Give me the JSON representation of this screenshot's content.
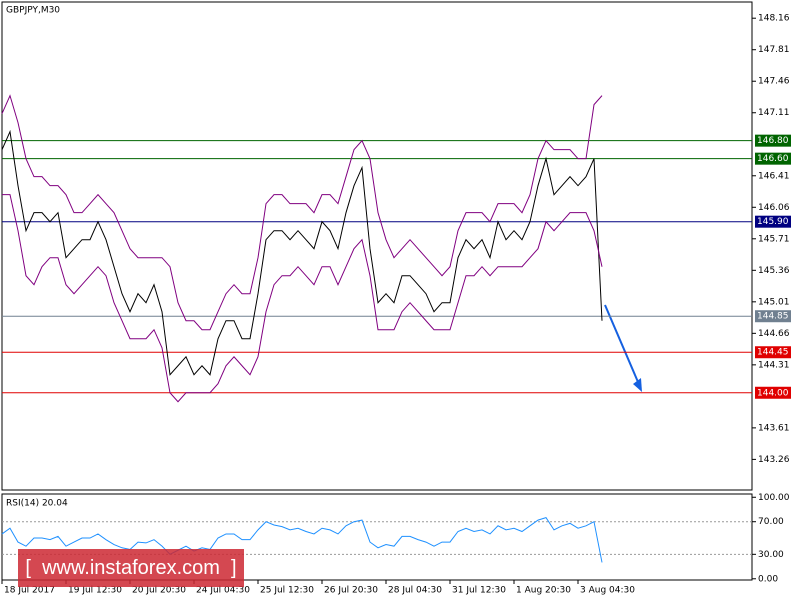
{
  "chart_data": [
    {
      "type": "line",
      "title": "GBPJPY,M30",
      "xlim": [
        0,
        93.75
      ],
      "ylim": [
        142.92,
        148.34
      ],
      "yticks": [
        148.16,
        147.81,
        147.46,
        147.11,
        146.41,
        146.06,
        145.71,
        145.36,
        145.01,
        144.66,
        144.31,
        143.61,
        143.26
      ],
      "levels": [
        {
          "value": 146.8,
          "label": "146.80",
          "color": "#006400"
        },
        {
          "value": 146.6,
          "label": "146.60",
          "color": "#006400"
        },
        {
          "value": 145.9,
          "label": "145.90",
          "color": "#000080"
        },
        {
          "value": 144.85,
          "label": "144.85",
          "color": "#708090"
        },
        {
          "value": 144.45,
          "label": "144.45",
          "color": "#e00000"
        },
        {
          "value": 144.0,
          "label": "144.00",
          "color": "#e00000"
        }
      ],
      "series": [
        {
          "color": "#000000",
          "values": [
            146.7,
            146.9,
            146.3,
            145.8,
            146.0,
            146.0,
            145.9,
            146.0,
            145.5,
            145.6,
            145.7,
            145.7,
            145.9,
            145.7,
            145.4,
            145.1,
            144.9,
            145.1,
            145.0,
            145.2,
            144.9,
            144.2,
            144.3,
            144.4,
            144.2,
            144.3,
            144.2,
            144.6,
            144.8,
            144.8,
            144.6,
            144.6,
            145.1,
            145.7,
            145.8,
            145.8,
            145.7,
            145.8,
            145.7,
            145.6,
            145.9,
            145.8,
            145.6,
            146.0,
            146.3,
            146.5,
            145.6,
            145.0,
            145.1,
            145.0,
            145.3,
            145.3,
            145.2,
            145.1,
            144.9,
            145.0,
            145.0,
            145.5,
            145.7,
            145.6,
            145.7,
            145.5,
            145.9,
            145.7,
            145.8,
            145.7,
            145.9,
            146.3,
            146.6,
            146.2,
            146.3,
            146.4,
            146.3,
            146.4,
            146.6,
            144.8
          ]
        },
        {
          "color": "#800080",
          "values": [
            147.1,
            147.3,
            147.0,
            146.6,
            146.4,
            146.4,
            146.3,
            146.3,
            146.2,
            146.0,
            146.0,
            146.1,
            146.2,
            146.1,
            146.0,
            145.8,
            145.6,
            145.5,
            145.5,
            145.5,
            145.5,
            145.4,
            145.0,
            144.8,
            144.8,
            144.7,
            144.7,
            144.9,
            145.1,
            145.2,
            145.1,
            145.1,
            145.5,
            146.1,
            146.2,
            146.2,
            146.1,
            146.1,
            146.1,
            146.0,
            146.2,
            146.2,
            146.1,
            146.4,
            146.7,
            146.8,
            146.6,
            146.0,
            145.7,
            145.5,
            145.6,
            145.7,
            145.6,
            145.5,
            145.4,
            145.3,
            145.4,
            145.8,
            146.0,
            146.0,
            146.0,
            145.9,
            146.1,
            146.1,
            146.1,
            146.0,
            146.2,
            146.6,
            146.8,
            146.7,
            146.7,
            146.7,
            146.6,
            146.6,
            147.2,
            147.3
          ]
        },
        {
          "color": "#800080",
          "values": [
            146.2,
            146.2,
            145.8,
            145.3,
            145.2,
            145.4,
            145.5,
            145.5,
            145.2,
            145.1,
            145.2,
            145.3,
            145.4,
            145.3,
            145.0,
            144.8,
            144.6,
            144.6,
            144.6,
            144.7,
            144.5,
            144.0,
            143.9,
            144.0,
            144.0,
            144.0,
            144.0,
            144.1,
            144.3,
            144.4,
            144.3,
            144.2,
            144.4,
            144.9,
            145.2,
            145.3,
            145.3,
            145.4,
            145.3,
            145.2,
            145.4,
            145.4,
            145.2,
            145.4,
            145.6,
            145.7,
            145.3,
            144.7,
            144.7,
            144.7,
            144.9,
            145.0,
            144.9,
            144.8,
            144.7,
            144.7,
            144.7,
            145.0,
            145.3,
            145.3,
            145.4,
            145.3,
            145.4,
            145.4,
            145.4,
            145.4,
            145.5,
            145.6,
            145.9,
            145.8,
            145.9,
            146.0,
            146.0,
            146.0,
            145.8,
            145.4
          ]
        }
      ]
    },
    {
      "type": "line",
      "title": "RSI(14) 20.04",
      "xlim": [
        0,
        93.75
      ],
      "ylim": [
        -1.5,
        104
      ],
      "xticks": [
        {
          "value": 0,
          "label": "18 Jul 2017"
        },
        {
          "value": 8,
          "label": "19 Jul 12:30"
        },
        {
          "value": 16,
          "label": "20 Jul 20:30"
        },
        {
          "value": 24,
          "label": "24 Jul 04:30"
        },
        {
          "value": 32,
          "label": "25 Jul 12:30"
        },
        {
          "value": 40,
          "label": "26 Jul 20:30"
        },
        {
          "value": 48,
          "label": "28 Jul 04:30"
        },
        {
          "value": 56,
          "label": "31 Jul 12:30"
        },
        {
          "value": 64,
          "label": "1 Aug 20:30"
        },
        {
          "value": 72,
          "label": "3 Aug 04:30"
        }
      ],
      "yticks": [
        {
          "value": 100,
          "label": "100.00"
        },
        {
          "value": 70,
          "label": "70.00"
        },
        {
          "value": 30,
          "label": "30.00"
        },
        {
          "value": 0,
          "label": "0.00"
        }
      ],
      "series": [
        {
          "color": "#1e90ff",
          "values": [
            55,
            62,
            45,
            40,
            50,
            50,
            48,
            52,
            40,
            45,
            50,
            50,
            55,
            48,
            42,
            38,
            36,
            45,
            44,
            48,
            40,
            30,
            35,
            40,
            34,
            38,
            36,
            50,
            55,
            55,
            48,
            48,
            60,
            70,
            66,
            64,
            60,
            62,
            58,
            55,
            62,
            60,
            55,
            65,
            70,
            72,
            45,
            38,
            42,
            40,
            52,
            52,
            48,
            45,
            40,
            45,
            45,
            58,
            62,
            58,
            60,
            55,
            65,
            60,
            62,
            58,
            65,
            72,
            75,
            60,
            65,
            68,
            62,
            65,
            70,
            20.04
          ]
        }
      ]
    }
  ],
  "watermark": "[  www.instaforex.com  ]"
}
